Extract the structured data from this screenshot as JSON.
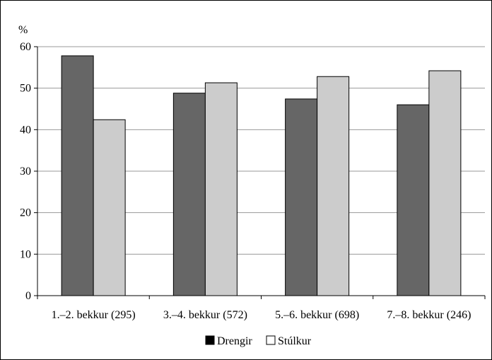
{
  "chart_data": {
    "type": "bar",
    "title": "",
    "ylabel": "%",
    "xlabel": "",
    "categories": [
      "1.–2. bekkur (295)",
      "3.–4. bekkur (572)",
      "5.–6. bekkur (698)",
      "7.–8. bekkur (246)"
    ],
    "series": [
      {
        "name": "Drengir",
        "values": [
          57.8,
          48.8,
          47.4,
          46.0
        ],
        "color": "#666666"
      },
      {
        "name": "Stúlkur",
        "values": [
          42.4,
          51.3,
          52.8,
          54.2
        ],
        "color": "#cccccc"
      }
    ],
    "ylim": [
      0,
      60
    ],
    "yticks": [
      0,
      10,
      20,
      30,
      40,
      50,
      60
    ],
    "grid": true,
    "legend_position": "bottom"
  }
}
